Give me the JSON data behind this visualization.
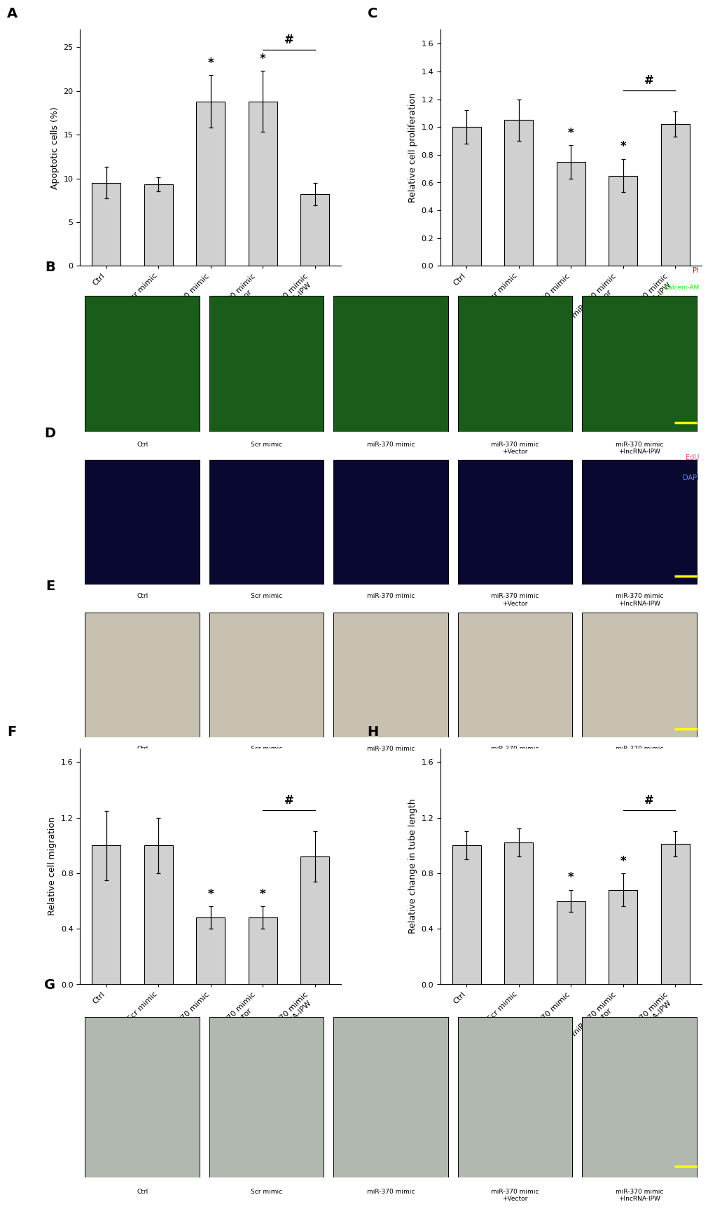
{
  "panel_A": {
    "categories": [
      "Ctrl",
      "Scr mimic",
      "miR-370 mimic",
      "miR-370 mimic\n+Vector",
      "miR-370 mimic\n+lncRNA-IPW"
    ],
    "values": [
      9.5,
      9.3,
      18.8,
      18.8,
      8.2
    ],
    "errors": [
      1.8,
      0.8,
      3.0,
      3.5,
      1.3
    ],
    "ylabel": "Apoptotic cells (%)",
    "ylim": [
      0,
      27
    ],
    "yticks": [
      0,
      5,
      10,
      15,
      20,
      25
    ],
    "bar_color": "#d0d0d0",
    "star_indices": [
      2,
      3
    ],
    "hash_bar": [
      3,
      4
    ],
    "label": "A"
  },
  "panel_C": {
    "categories": [
      "Ctrl",
      "Scr mimic",
      "miR-370 mimic",
      "miR-370 mimic\n+Vector",
      "miR-370 mimic\n+lncRNA-IPW"
    ],
    "values": [
      1.0,
      1.05,
      0.75,
      0.65,
      1.02
    ],
    "errors": [
      0.12,
      0.15,
      0.12,
      0.12,
      0.09
    ],
    "ylabel": "Relative cell proliferation",
    "ylim": [
      0.0,
      1.7
    ],
    "yticks": [
      0.0,
      0.2,
      0.4,
      0.6,
      0.8,
      1.0,
      1.2,
      1.4,
      1.6
    ],
    "bar_color": "#d0d0d0",
    "star_indices": [
      2,
      3
    ],
    "hash_bar": [
      3,
      4
    ],
    "label": "C"
  },
  "panel_F": {
    "categories": [
      "Ctrl",
      "Scr mimic",
      "miR-370 mimic",
      "miR-370 mimic\n+Vector",
      "miR-370 mimic\n+lncRNA-IPW"
    ],
    "values": [
      1.0,
      1.0,
      0.48,
      0.48,
      0.92
    ],
    "errors": [
      0.25,
      0.2,
      0.08,
      0.08,
      0.18
    ],
    "ylabel": "Relative cell migration",
    "ylim": [
      0.0,
      1.7
    ],
    "yticks": [
      0.0,
      0.4,
      0.8,
      1.2,
      1.6
    ],
    "bar_color": "#d0d0d0",
    "star_indices": [
      2,
      3
    ],
    "hash_bar": [
      3,
      4
    ],
    "label": "F"
  },
  "panel_H": {
    "categories": [
      "Ctrl",
      "Scr mimic",
      "miR-370 mimic",
      "miR-370 mimic\n+Vector",
      "miR-370 mimic\n+lncRNA-IPW"
    ],
    "values": [
      1.0,
      1.02,
      0.6,
      0.68,
      1.01
    ],
    "errors": [
      0.1,
      0.1,
      0.08,
      0.12,
      0.09
    ],
    "ylabel": "Relative change in tube length",
    "ylim": [
      0.0,
      1.7
    ],
    "yticks": [
      0.0,
      0.4,
      0.8,
      1.2,
      1.6
    ],
    "bar_color": "#d0d0d0",
    "star_indices": [
      2,
      3
    ],
    "hash_bar": [
      3,
      4
    ],
    "label": "H"
  },
  "sub_labels": [
    "Ctrl",
    "Scr mimic",
    "miR-370 mimic",
    "miR-370 mimic\n+Vector",
    "miR-370 mimic\n+lncRNA-IPW"
  ],
  "panel_B_color": "#1a5c1a",
  "panel_D_color": "#080830",
  "panel_E_color": "#c8c0b0",
  "panel_G_color": "#b0b8b0",
  "label_fontsize": 14,
  "tick_fontsize": 8,
  "ylabel_fontsize": 9,
  "star_fontsize": 12,
  "height_ratios": [
    0.175,
    0.115,
    0.105,
    0.105,
    0.175,
    0.135
  ],
  "edgecolor": "#000000",
  "bar_edgewidth": 0.8
}
